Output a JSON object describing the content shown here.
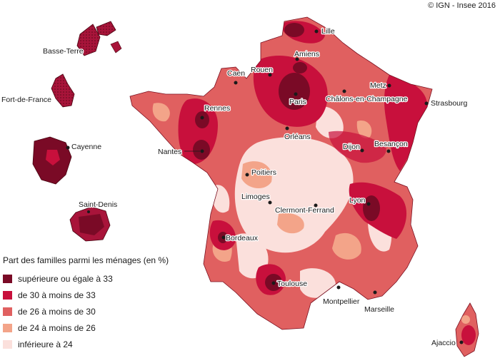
{
  "credit": "© IGN - Insee 2016",
  "legend": {
    "title": "Part des familles parmi les ménages (en %)",
    "items": [
      {
        "label": "supérieure ou égale à 33",
        "color": "#7a0a26"
      },
      {
        "label": "de 30 à moins de 33",
        "color": "#c8103c"
      },
      {
        "label": "de 26 à moins de 30",
        "color": "#e06060"
      },
      {
        "label": "de 24 à moins de 26",
        "color": "#f3a489"
      },
      {
        "label": "inférieure à 24",
        "color": "#fbe0dc"
      }
    ]
  },
  "cities": [
    "Lille",
    "Amiens",
    "Rouen",
    "Caen",
    "Metz",
    "Paris",
    "Châlons-en-Champagne",
    "Strasbourg",
    "Rennes",
    "Orléans",
    "Nantes",
    "Dijon",
    "Besançon",
    "Poitiers",
    "Limoges",
    "Clermont-Ferrand",
    "Lyon",
    "Bordeaux",
    "Toulouse",
    "Montpellier",
    "Marseille",
    "Ajaccio",
    "Basse-Terre",
    "Fort-de-France",
    "Cayenne",
    "Saint-Denis"
  ]
}
